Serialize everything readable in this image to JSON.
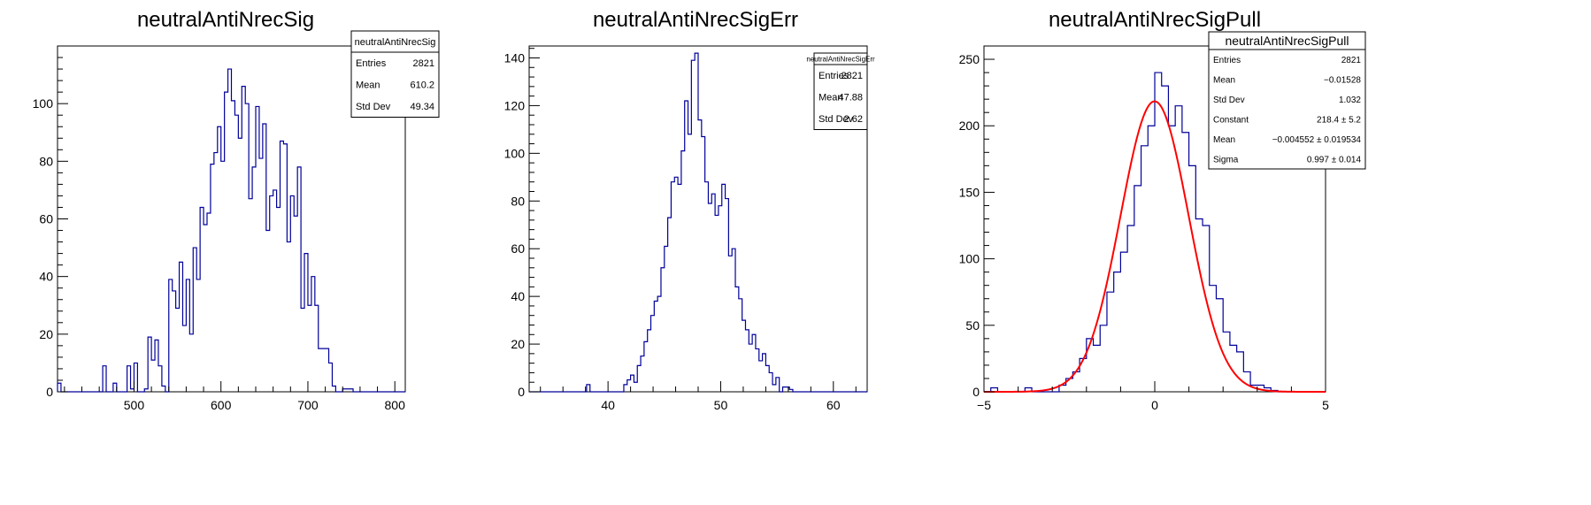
{
  "chart_data": [
    {
      "type": "histogram",
      "title": "neutralAntiNrecSig",
      "xlim": [
        412,
        812
      ],
      "ylim": [
        0,
        120
      ],
      "xticks": [
        500,
        600,
        700,
        800
      ],
      "yticks": [
        0,
        20,
        40,
        60,
        80,
        100
      ],
      "bin_width": 4,
      "bin_starts": [
        412,
        416,
        420,
        424,
        428,
        432,
        436,
        440,
        444,
        448,
        452,
        456,
        460,
        464,
        468,
        472,
        476,
        480,
        484,
        488,
        492,
        496,
        500,
        504,
        508,
        512,
        516,
        520,
        524,
        528,
        532,
        536,
        540,
        544,
        548,
        552,
        556,
        560,
        564,
        568,
        572,
        576,
        580,
        584,
        588,
        592,
        596,
        600,
        604,
        608,
        612,
        616,
        620,
        624,
        628,
        632,
        636,
        640,
        644,
        648,
        652,
        656,
        660,
        664,
        668,
        672,
        676,
        680,
        684,
        688,
        692,
        696,
        700,
        704,
        708,
        712,
        716,
        720,
        724,
        728,
        732,
        736,
        740,
        744,
        748,
        752,
        756,
        760,
        764,
        768,
        772,
        776,
        780,
        784,
        788,
        792,
        796,
        800,
        804,
        808
      ],
      "values": [
        3,
        0,
        0,
        0,
        0,
        0,
        0,
        0,
        0,
        0,
        0,
        0,
        0,
        9,
        0,
        0,
        3,
        0,
        0,
        0,
        9,
        1,
        10,
        0,
        0,
        1,
        19,
        11,
        18,
        9,
        2,
        0,
        39,
        35,
        29,
        45,
        23,
        39,
        20,
        50,
        39,
        64,
        58,
        62,
        79,
        83,
        92,
        80,
        104,
        112,
        101,
        96,
        88,
        106,
        100,
        67,
        78,
        99,
        81,
        93,
        56,
        68,
        70,
        64,
        87,
        86,
        52,
        68,
        61,
        78,
        29,
        48,
        30,
        40,
        30,
        15,
        15,
        15,
        10,
        2,
        0,
        0,
        1,
        1,
        1,
        0,
        0,
        0,
        0,
        0,
        0,
        0,
        0,
        0,
        0,
        0,
        0,
        0,
        0,
        0
      ],
      "stats": {
        "header": "neutralAntiNrecSig",
        "rows": [
          {
            "label": "Entries",
            "value": "2821"
          },
          {
            "label": "Mean",
            "value": "610.2"
          },
          {
            "label": "Std Dev",
            "value": "49.34"
          }
        ]
      },
      "colors": {
        "hist": "#000099",
        "frame": "#000000"
      }
    },
    {
      "type": "histogram",
      "title": "neutralAntiNrecSigErr",
      "xlim": [
        33,
        63
      ],
      "ylim": [
        0,
        145
      ],
      "xticks": [
        40,
        50,
        60
      ],
      "yticks": [
        0,
        20,
        40,
        60,
        80,
        100,
        120,
        140
      ],
      "bin_width": 0.3,
      "bin_starts": [
        33.0,
        33.3,
        33.6,
        33.9,
        34.2,
        34.5,
        34.8,
        35.1,
        35.4,
        35.7,
        36.0,
        36.3,
        36.6,
        36.9,
        37.2,
        37.5,
        37.8,
        38.1,
        38.4,
        38.7,
        39.0,
        39.3,
        39.6,
        39.9,
        40.2,
        40.5,
        40.8,
        41.1,
        41.4,
        41.7,
        42.0,
        42.3,
        42.6,
        42.9,
        43.2,
        43.5,
        43.8,
        44.1,
        44.4,
        44.7,
        45.0,
        45.3,
        45.6,
        45.9,
        46.2,
        46.5,
        46.8,
        47.1,
        47.4,
        47.7,
        48.0,
        48.3,
        48.6,
        48.9,
        49.2,
        49.5,
        49.8,
        50.1,
        50.4,
        50.7,
        51.0,
        51.3,
        51.6,
        51.9,
        52.2,
        52.5,
        52.8,
        53.1,
        53.4,
        53.7,
        54.0,
        54.3,
        54.6,
        54.9,
        55.2,
        55.5,
        55.8,
        56.1,
        56.4,
        56.7,
        57.0,
        57.3,
        57.6,
        57.9,
        58.2,
        58.5,
        58.8,
        59.1,
        59.4,
        59.7,
        60.0,
        60.3,
        60.6,
        60.9,
        61.2,
        61.5,
        61.8,
        62.1,
        62.4,
        62.7
      ],
      "values": [
        0,
        0,
        0,
        0,
        0,
        0,
        0,
        0,
        0,
        0,
        0,
        0,
        0,
        0,
        0,
        0,
        0,
        3,
        0,
        0,
        0,
        0,
        0,
        0,
        0,
        0,
        0,
        0,
        3,
        5,
        7,
        4,
        11,
        15,
        21,
        26,
        32,
        38,
        40,
        52,
        61,
        73,
        88,
        90,
        87,
        101,
        122,
        108,
        139,
        142,
        114,
        107,
        88,
        79,
        83,
        74,
        78,
        87,
        81,
        57,
        60,
        44,
        39,
        30,
        26,
        20,
        24,
        18,
        13,
        16,
        11,
        8,
        3,
        6,
        0,
        2,
        2,
        1,
        0,
        0,
        0,
        0,
        0,
        0,
        0,
        0,
        0,
        0,
        0,
        0,
        0,
        0,
        0,
        0,
        0,
        0,
        0,
        0,
        0,
        0
      ],
      "stats": {
        "header": "neutralAntiNrecSigErr",
        "rows": [
          {
            "label": "Entries",
            "value": "2821"
          },
          {
            "label": "Mean",
            "value": "47.88"
          },
          {
            "label": "Std Dev",
            "value": "2.62"
          }
        ]
      },
      "colors": {
        "hist": "#000099",
        "frame": "#000000"
      }
    },
    {
      "type": "histogram",
      "title": "neutralAntiNrecSigPull",
      "xlim": [
        -5,
        5
      ],
      "ylim": [
        0,
        260
      ],
      "xticks": [
        -5,
        0,
        5
      ],
      "yticks": [
        0,
        50,
        100,
        150,
        200,
        250
      ],
      "bin_width": 0.2,
      "bin_starts": [
        -5.0,
        -4.8,
        -4.6,
        -4.4,
        -4.2,
        -4.0,
        -3.8,
        -3.6,
        -3.4,
        -3.2,
        -3.0,
        -2.8,
        -2.6,
        -2.4,
        -2.2,
        -2.0,
        -1.8,
        -1.6,
        -1.4,
        -1.2,
        -1.0,
        -0.8,
        -0.6,
        -0.4,
        -0.2,
        0.0,
        0.2,
        0.4,
        0.6,
        0.8,
        1.0,
        1.2,
        1.4,
        1.6,
        1.8,
        2.0,
        2.2,
        2.4,
        2.6,
        2.8,
        3.0,
        3.2,
        3.4,
        3.6,
        3.8,
        4.0,
        4.2,
        4.4,
        4.6,
        4.8
      ],
      "values": [
        0,
        3,
        0,
        0,
        0,
        0,
        3,
        0,
        0,
        0,
        0,
        5,
        10,
        15,
        25,
        40,
        35,
        50,
        75,
        90,
        105,
        125,
        155,
        185,
        200,
        240,
        230,
        200,
        215,
        195,
        170,
        130,
        125,
        80,
        70,
        45,
        35,
        30,
        15,
        5,
        5,
        3,
        1,
        0,
        0,
        0,
        0,
        0,
        0,
        0
      ],
      "fit": {
        "constant": 218.4,
        "mean": -0.004552,
        "sigma": 0.997,
        "color": "#ff0000"
      },
      "stats": {
        "header": "neutralAntiNrecSigPull",
        "rows": [
          {
            "label": "Entries",
            "value": "2821"
          },
          {
            "label": "Mean",
            "value": "−0.01528"
          },
          {
            "label": "Std Dev",
            "value": "1.032"
          },
          {
            "label": "Constant",
            "value": "218.4 ± 5.2"
          },
          {
            "label": "Mean",
            "value": "−0.004552 ± 0.019534"
          },
          {
            "label": "Sigma",
            "value": "0.997 ± 0.014"
          }
        ]
      },
      "colors": {
        "hist": "#000099",
        "frame": "#000000"
      }
    }
  ]
}
